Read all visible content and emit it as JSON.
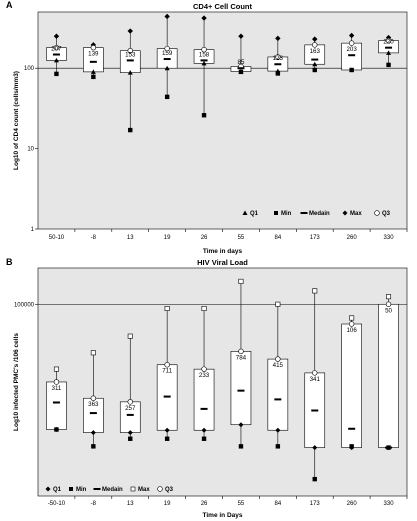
{
  "colors": {
    "plot_bg": "#e6e6e6",
    "box_fill": "#ffffff",
    "ink": "#000000",
    "reference_line": "#000000"
  },
  "chart_data": [
    {
      "panel_label": "A",
      "type": "boxplot",
      "title": "CD4+ Cell Count",
      "xlabel": "Time in days",
      "ylabel": "Log10 of CD4 count (cells/mm3)",
      "y_scale": "log",
      "ylim": [
        1,
        500
      ],
      "y_ticks": [
        {
          "value": 100,
          "label": "100"
        },
        {
          "value": 10,
          "label": "10"
        },
        {
          "value": 1,
          "label": "1"
        }
      ],
      "reference_line": 100,
      "grid": false,
      "legend_position": "bottom-right",
      "legend": [
        {
          "symbol": "triangle",
          "label": "Q1"
        },
        {
          "symbol": "square",
          "label": "Min"
        },
        {
          "symbol": "dash",
          "label": "Medain"
        },
        {
          "symbol": "diamond",
          "label": "Max"
        },
        {
          "symbol": "circle",
          "label": "Q3"
        }
      ],
      "q3_marker": "circle",
      "max_marker": "diamond",
      "categories": [
        "50-10",
        "-8",
        "13",
        "19",
        "26",
        "55",
        "84",
        "173",
        "260",
        "330"
      ],
      "labels": [
        "207",
        "139",
        "153",
        "159",
        "158",
        "85",
        "123",
        "163",
        "203",
        "220"
      ],
      "q1": [
        125,
        90,
        88,
        100,
        115,
        91,
        92,
        112,
        95,
        155
      ],
      "q3": [
        180,
        180,
        165,
        175,
        170,
        105,
        138,
        195,
        205,
        220
      ],
      "median": [
        148,
        120,
        125,
        130,
        125,
        100,
        112,
        128,
        145,
        180
      ],
      "min": [
        85,
        78,
        17,
        44,
        26,
        90,
        86,
        95,
        95,
        110
      ],
      "max": [
        250,
        195,
        290,
        440,
        420,
        250,
        235,
        230,
        255,
        240
      ]
    },
    {
      "panel_label": "B",
      "type": "boxplot",
      "title": "HIV Viral Load",
      "xlabel": "Time in Days",
      "ylabel": "Log10 infected PMC's /106 cells",
      "y_scale": "log",
      "ylim": [
        300,
        300000
      ],
      "y_ticks": [
        {
          "value": 100000,
          "label": "100000"
        }
      ],
      "reference_line": 100000,
      "grid": false,
      "legend_position": "bottom-left",
      "legend": [
        {
          "symbol": "diamond",
          "label": "Q1"
        },
        {
          "symbol": "square",
          "label": "Min"
        },
        {
          "symbol": "dash",
          "label": "Medain"
        },
        {
          "symbol": "open-square",
          "label": "Max"
        },
        {
          "symbol": "circle",
          "label": "Q3"
        }
      ],
      "q3_marker": "circle",
      "max_marker": "open-square",
      "categories": [
        "-50-10",
        "-8",
        "13",
        "19",
        "26",
        "55",
        "84",
        "173",
        "260",
        "330"
      ],
      "labels": [
        "311",
        "363",
        "257",
        "711",
        "233",
        "784",
        "415",
        "341",
        "106",
        "50"
      ],
      "q1": [
        2250,
        2050,
        2050,
        2200,
        2200,
        2600,
        2200,
        1300,
        1300,
        1300
      ],
      "q3": [
        9500,
        5800,
        5200,
        16000,
        14000,
        24000,
        19000,
        12500,
        55000,
        100000
      ],
      "median": [
        5100,
        3700,
        3500,
        6100,
        4200,
        7300,
        5600,
        4000,
        2300,
        1300
      ],
      "min": [
        2250,
        1350,
        1700,
        1700,
        1700,
        1350,
        1350,
        500,
        1350,
        1300
      ],
      "max": [
        14000,
        23000,
        38000,
        88000,
        88000,
        200000,
        100000,
        150000,
        66000,
        126000
      ]
    }
  ]
}
